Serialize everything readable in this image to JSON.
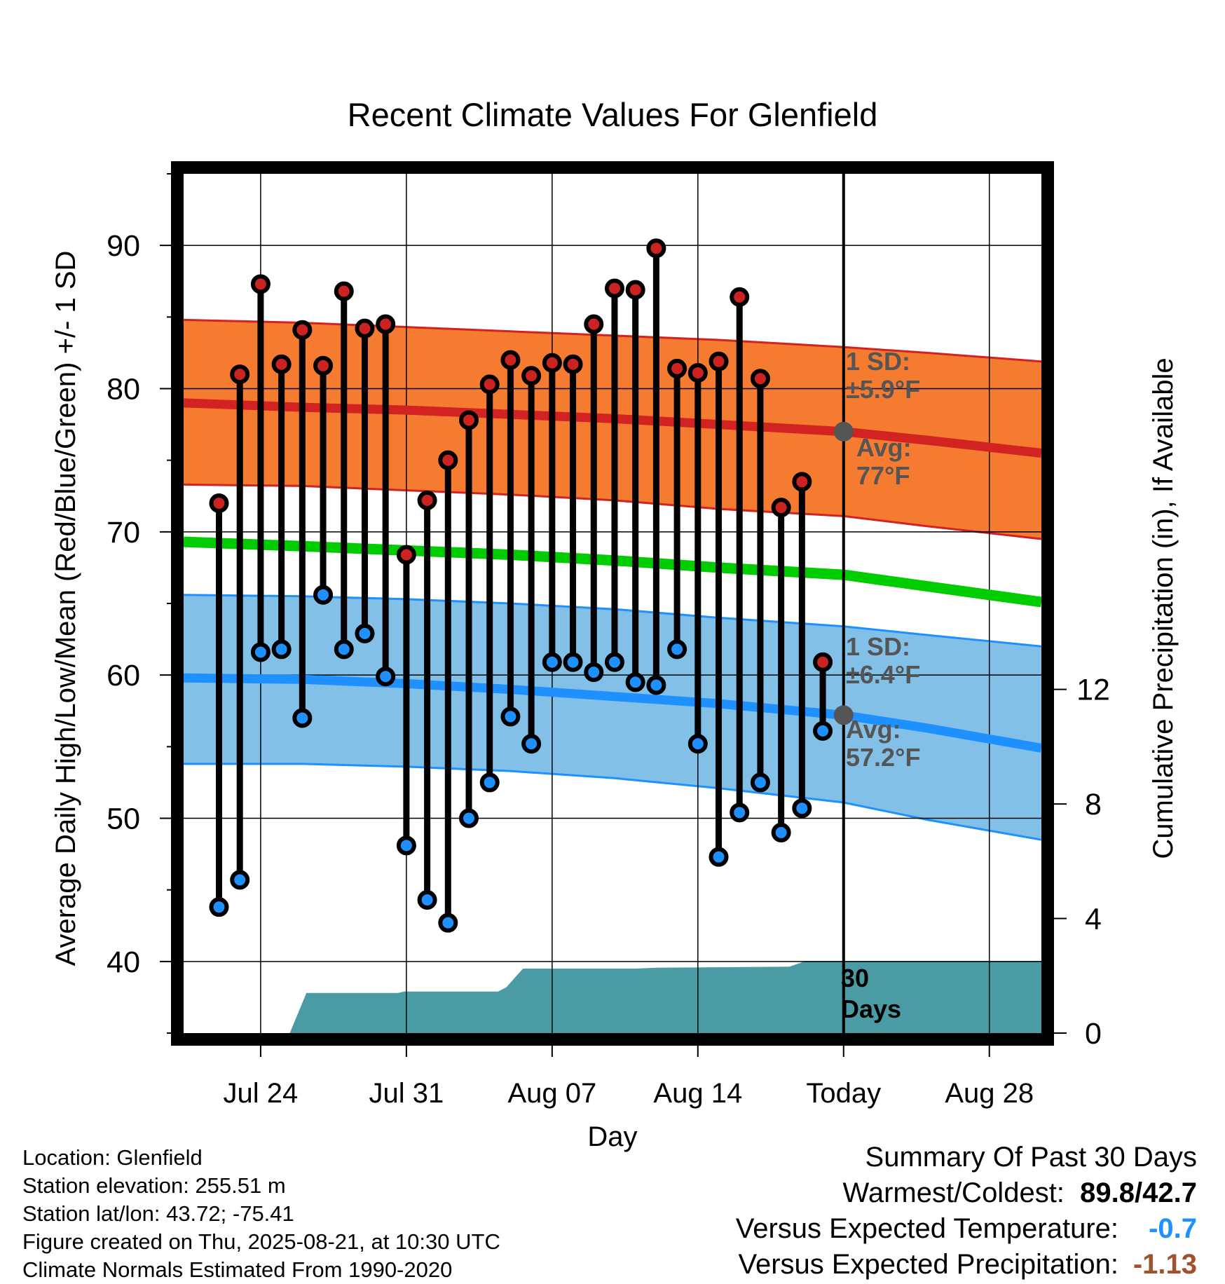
{
  "chart_data": {
    "type": "line",
    "title": "Recent Climate Values For Glenfield",
    "xlabel": "Day",
    "ylabel": "Average Daily High/Low/Mean (Red/Blue/Green) +/- 1 SD",
    "y2label": "Cumulative Precipitation (in), If Available",
    "ylim": [
      35,
      95
    ],
    "y2lim": [
      0,
      30
    ],
    "y_ticks": [
      40,
      50,
      60,
      70,
      80,
      90
    ],
    "y2_ticks": [
      0,
      4,
      8,
      12
    ],
    "x_tick_labels": [
      {
        "day": 3,
        "label": "Jul 24"
      },
      {
        "day": 10,
        "label": "Jul 31"
      },
      {
        "day": 17,
        "label": "Aug 07"
      },
      {
        "day": 24,
        "label": "Aug 14"
      },
      {
        "day": 31,
        "label": "Today"
      },
      {
        "day": 38,
        "label": "Aug 28"
      }
    ],
    "xlim": [
      -0.7,
      40.5
    ],
    "today_day": 31,
    "grid": true,
    "days": [
      1,
      2,
      3,
      4,
      5,
      6,
      7,
      8,
      9,
      10,
      11,
      12,
      13,
      14,
      15,
      16,
      17,
      18,
      19,
      20,
      21,
      22,
      23,
      24,
      25,
      26,
      27,
      28,
      29,
      30
    ],
    "highs": [
      72.0,
      81.0,
      87.3,
      81.7,
      84.1,
      81.6,
      86.8,
      84.2,
      84.5,
      68.4,
      72.2,
      75.0,
      77.8,
      80.3,
      82.0,
      80.9,
      81.8,
      81.7,
      84.5,
      87.0,
      86.9,
      89.8,
      81.4,
      81.1,
      81.9,
      86.4,
      80.7,
      71.7,
      73.5,
      60.9
    ],
    "lows": [
      43.8,
      45.7,
      61.6,
      61.8,
      57.0,
      65.6,
      61.8,
      62.9,
      59.9,
      48.1,
      44.3,
      42.7,
      50.0,
      52.5,
      57.1,
      55.2,
      60.9,
      60.9,
      60.2,
      60.9,
      59.5,
      59.3,
      61.8,
      55.2,
      47.3,
      50.4,
      52.5,
      49.0,
      50.7,
      56.1
    ],
    "normal_days": [
      -0.7,
      5,
      10,
      15,
      20,
      25,
      31,
      35,
      40.5
    ],
    "normal_high": [
      79.0,
      78.7,
      78.5,
      78.2,
      77.9,
      77.5,
      77.0,
      76.4,
      75.5
    ],
    "normal_high_sd_upper": [
      84.8,
      84.6,
      84.3,
      84.0,
      83.7,
      83.4,
      82.9,
      82.5,
      81.9
    ],
    "normal_high_sd_lower": [
      73.3,
      73.2,
      72.9,
      72.6,
      72.2,
      71.6,
      71.1,
      70.4,
      69.5
    ],
    "normal_mean": [
      69.3,
      69.0,
      68.7,
      68.4,
      68.0,
      67.5,
      67.0,
      66.2,
      65.1
    ],
    "normal_low": [
      59.8,
      59.7,
      59.4,
      59.0,
      58.5,
      58.0,
      57.2,
      56.3,
      54.9
    ],
    "normal_low_sd_upper": [
      65.6,
      65.5,
      65.3,
      65.0,
      64.6,
      64.0,
      63.4,
      62.8,
      62.0
    ],
    "normal_low_sd_lower": [
      53.8,
      53.8,
      53.6,
      53.3,
      52.8,
      52.1,
      51.1,
      49.9,
      48.5
    ],
    "precip_days": [
      -0.7,
      4.4,
      5.2,
      9.6,
      9.9,
      14.4,
      14.8,
      15.6,
      16.4,
      21.0,
      22.0,
      28.4,
      29.2,
      40.5
    ],
    "precip_cum": [
      0,
      0,
      1.4,
      1.4,
      1.45,
      1.45,
      1.6,
      2.25,
      2.25,
      2.25,
      2.28,
      2.32,
      2.52,
      2.52
    ],
    "high_sd_label": "1 SD:",
    "high_sd_value": "±5.9°F",
    "high_avg_label": "Avg:",
    "high_avg_value": "77°F",
    "low_sd_label": "1 SD:",
    "low_sd_value": "±6.4°F",
    "low_avg_label": "Avg:",
    "low_avg_value": "57.2°F",
    "days_label_1": "30",
    "days_label_2": "Days",
    "colors": {
      "high_band": "#f47b2f",
      "high_line": "#d32222",
      "low_band": "#83c0e8",
      "low_line": "#1e90ff",
      "mean_line": "#00cc00",
      "precip": "#4a9ba3",
      "high_dot": "#cc2222",
      "low_dot": "#1e90ff",
      "annotation": "#555555"
    }
  },
  "footer": {
    "location": "Location: Glenfield",
    "elevation": "Station elevation: 255.51 m",
    "latlon": "Station lat/lon: 43.72; -75.41",
    "created": "Figure created on Thu, 2025-08-21, at 10:30 UTC",
    "normals": "Climate Normals Estimated From 1990-2020"
  },
  "summary": {
    "title": "Summary Of Past 30 Days",
    "warm_cold_label": "Warmest/Coldest:",
    "warmest": "89.8",
    "slash": "/",
    "coldest": "42.7",
    "temp_label": "Versus Expected Temperature:",
    "temp_value": "-0.7",
    "precip_label": "Versus Expected Precipitation:",
    "precip_value": "-1.13"
  }
}
